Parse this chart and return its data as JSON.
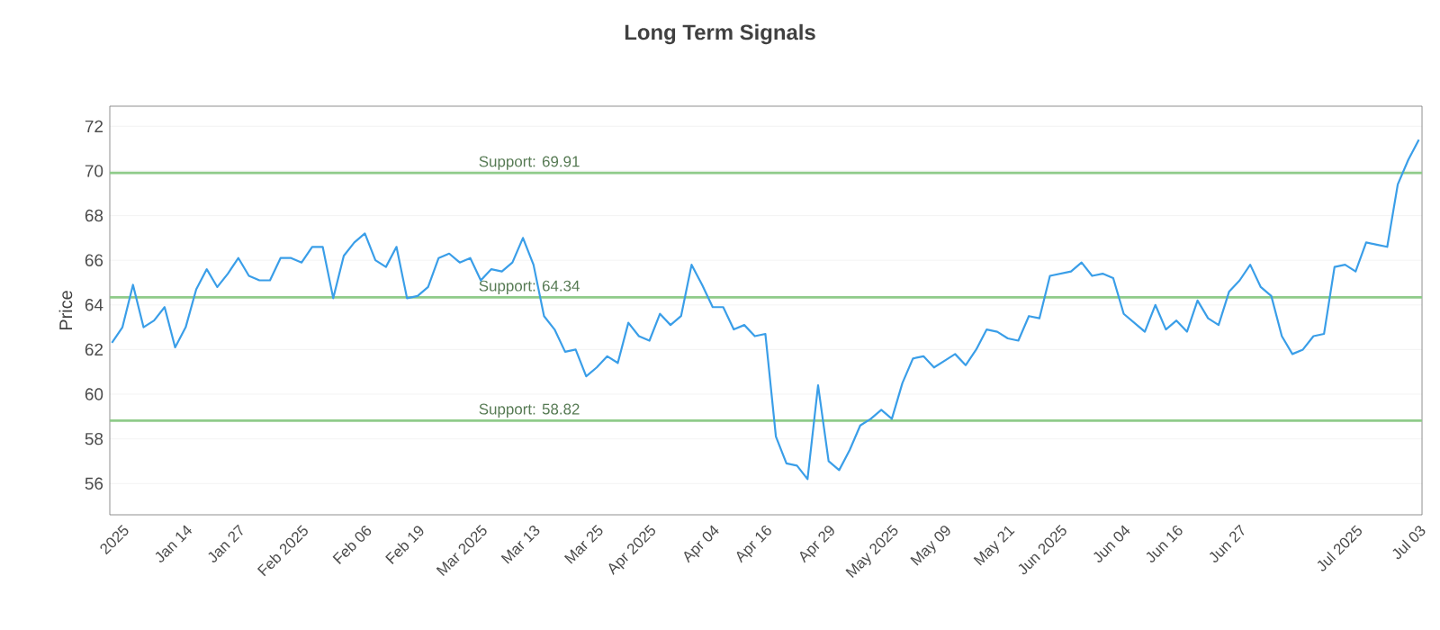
{
  "chart_data": {
    "type": "line",
    "title": "Long Term Signals",
    "ylabel": "Price",
    "categories": [
      null,
      "2025",
      null,
      null,
      null,
      null,
      null,
      "Jan 14",
      null,
      null,
      null,
      null,
      "Jan 27",
      null,
      null,
      null,
      null,
      null,
      "Feb 2025",
      null,
      null,
      null,
      null,
      null,
      "Feb 06",
      null,
      null,
      null,
      null,
      "Feb 19",
      null,
      null,
      null,
      null,
      null,
      "Mar 2025",
      null,
      null,
      null,
      null,
      "Mar 13",
      null,
      null,
      null,
      null,
      null,
      "Mar 25",
      null,
      null,
      null,
      null,
      "Apr 2025",
      null,
      null,
      null,
      null,
      null,
      "Apr 04",
      null,
      null,
      null,
      null,
      "Apr 16",
      null,
      null,
      null,
      null,
      null,
      "Apr 29",
      null,
      null,
      null,
      null,
      null,
      "May 2025",
      null,
      null,
      null,
      null,
      "May 09",
      null,
      null,
      null,
      null,
      null,
      "May 21",
      null,
      null,
      null,
      null,
      "Jun 2025",
      null,
      null,
      null,
      null,
      null,
      "Jun 04",
      null,
      null,
      null,
      null,
      "Jun 16",
      null,
      null,
      null,
      null,
      null,
      "Jun 27",
      null,
      null,
      null,
      null,
      null,
      null,
      null,
      null,
      null,
      null,
      "Jul 2025",
      null,
      null,
      null,
      null,
      null,
      "Jul 03"
    ],
    "series": [
      {
        "color": "#3a9ee8",
        "values": [
          62.3,
          63.0,
          64.9,
          63.0,
          63.3,
          63.9,
          62.1,
          63.0,
          64.7,
          65.6,
          64.8,
          65.4,
          66.1,
          65.3,
          65.1,
          65.1,
          66.1,
          66.1,
          65.9,
          66.6,
          66.6,
          64.3,
          66.2,
          66.8,
          67.2,
          66.0,
          65.7,
          66.6,
          64.3,
          64.4,
          64.8,
          66.1,
          66.3,
          65.9,
          66.1,
          65.1,
          65.6,
          65.5,
          65.9,
          67.0,
          65.8,
          63.5,
          62.9,
          61.9,
          62.0,
          60.8,
          61.2,
          61.7,
          61.4,
          63.2,
          62.6,
          62.4,
          63.6,
          63.1,
          63.5,
          65.8,
          64.9,
          63.9,
          63.9,
          62.9,
          63.1,
          62.6,
          62.7,
          58.1,
          56.9,
          56.8,
          56.2,
          60.4,
          57.0,
          56.6,
          57.5,
          58.6,
          58.9,
          59.3,
          58.9,
          60.5,
          61.6,
          61.7,
          61.2,
          61.5,
          61.8,
          61.3,
          62.0,
          62.9,
          62.8,
          62.5,
          62.4,
          63.5,
          63.4,
          65.3,
          65.4,
          65.5,
          65.9,
          65.3,
          65.4,
          65.2,
          63.6,
          63.2,
          62.8,
          64.0,
          62.9,
          63.3,
          62.8,
          64.2,
          63.4,
          63.1,
          64.6,
          65.1,
          65.8,
          64.8,
          64.4,
          62.6,
          61.8,
          62.0,
          62.6,
          62.7,
          65.7,
          65.8,
          65.5,
          66.8,
          66.7,
          66.6,
          69.4,
          70.5,
          71.4
        ]
      }
    ],
    "ylim": [
      54.6,
      72.9
    ],
    "yticks": [
      56,
      58,
      60,
      62,
      64,
      66,
      68,
      70,
      72
    ],
    "grid": "y",
    "ref_lines": [
      {
        "axis": "y",
        "value": 69.91,
        "label": "Support: 69.91",
        "color": "#8fcb8a"
      },
      {
        "axis": "y",
        "value": 64.34,
        "label": "Support: 64.34",
        "color": "#8fcb8a"
      },
      {
        "axis": "y",
        "value": 58.82,
        "label": "Support: 58.82",
        "color": "#8fcb8a"
      }
    ]
  }
}
